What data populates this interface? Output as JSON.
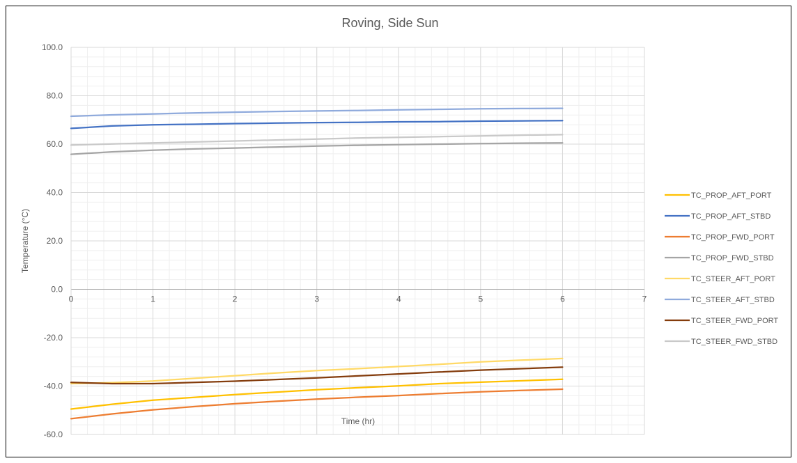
{
  "chart_data": {
    "type": "line",
    "title": "Roving, Side Sun",
    "xlabel": "Time (hr)",
    "ylabel": "Temperature (°C)",
    "xlim": [
      0,
      7
    ],
    "ylim": [
      -60,
      100
    ],
    "x_ticks": [
      "0",
      "1",
      "2",
      "3",
      "4",
      "5",
      "6",
      "7"
    ],
    "y_ticks": [
      "100.0",
      "80.0",
      "60.0",
      "40.0",
      "20.0",
      "0.0",
      "-20.0",
      "-40.0",
      "-60.0"
    ],
    "grid": true,
    "legend_position": "right",
    "x": [
      0,
      0.5,
      1,
      1.5,
      2,
      2.5,
      3,
      3.5,
      4,
      4.5,
      5,
      5.5,
      6
    ],
    "series": [
      {
        "name": "TC_PROP_AFT_PORT",
        "color": "#FFC000",
        "values": [
          -49.5,
          -47.5,
          -45.8,
          -44.7,
          -43.5,
          -42.5,
          -41.5,
          -40.7,
          -39.9,
          -39.0,
          -38.4,
          -37.8,
          -37.2
        ]
      },
      {
        "name": "TC_PROP_AFT_STBD",
        "color": "#4472C4",
        "values": [
          66.5,
          67.5,
          68.0,
          68.2,
          68.5,
          68.7,
          68.9,
          69.0,
          69.2,
          69.3,
          69.5,
          69.6,
          69.7
        ]
      },
      {
        "name": "TC_PROP_FWD_PORT",
        "color": "#ED7D31",
        "values": [
          -53.5,
          -51.5,
          -49.8,
          -48.5,
          -47.3,
          -46.3,
          -45.4,
          -44.6,
          -43.9,
          -43.1,
          -42.4,
          -41.8,
          -41.3
        ]
      },
      {
        "name": "TC_PROP_FWD_STBD",
        "color": "#A5A5A5",
        "values": [
          55.8,
          56.8,
          57.5,
          58.0,
          58.4,
          58.8,
          59.2,
          59.5,
          59.8,
          60.0,
          60.2,
          60.4,
          60.5
        ]
      },
      {
        "name": "TC_STEER_AFT_PORT",
        "color": "#FFD966",
        "values": [
          -39.0,
          -38.6,
          -37.9,
          -36.8,
          -35.7,
          -34.6,
          -33.6,
          -32.8,
          -31.9,
          -31.0,
          -30.0,
          -29.3,
          -28.6
        ]
      },
      {
        "name": "TC_STEER_AFT_STBD",
        "color": "#8FAADC",
        "values": [
          71.5,
          72.1,
          72.5,
          72.9,
          73.2,
          73.5,
          73.7,
          73.9,
          74.2,
          74.4,
          74.6,
          74.7,
          74.8
        ]
      },
      {
        "name": "TC_STEER_FWD_PORT",
        "color": "#843C0C",
        "values": [
          -38.5,
          -39.0,
          -39.0,
          -38.5,
          -38.0,
          -37.3,
          -36.6,
          -35.8,
          -35.0,
          -34.2,
          -33.4,
          -32.8,
          -32.2
        ]
      },
      {
        "name": "TC_STEER_FWD_STBD",
        "color": "#C9C9C9",
        "values": [
          59.6,
          60.1,
          60.5,
          60.9,
          61.3,
          61.7,
          62.1,
          62.5,
          62.8,
          63.1,
          63.4,
          63.7,
          63.9
        ]
      }
    ]
  }
}
